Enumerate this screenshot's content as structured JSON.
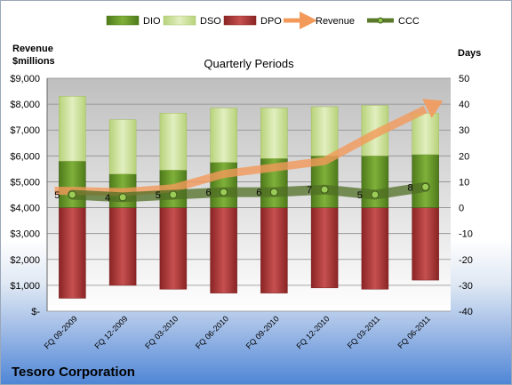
{
  "chart_data": {
    "type": "bar",
    "title": "Quarterly Periods",
    "company": "Tesoro Corporation",
    "left_axis_title": [
      "Revenue",
      "$millions"
    ],
    "right_axis_title": "Days",
    "left_ylim": [
      0,
      9000
    ],
    "right_ylim": [
      -40,
      50
    ],
    "left_ticks": [
      "$-",
      "$1,000",
      "$2,000",
      "$3,000",
      "$4,000",
      "$5,000",
      "$6,000",
      "$7,000",
      "$8,000",
      "$9,000"
    ],
    "right_ticks": [
      "-40",
      "-30",
      "-20",
      "-10",
      "0",
      "10",
      "20",
      "30",
      "40",
      "50"
    ],
    "categories": [
      "FQ 09-2009",
      "FQ 12-2009",
      "FQ 03-2010",
      "FQ 06-2010",
      "FQ 09-2010",
      "FQ 12-2010",
      "FQ 03-2011",
      "FQ 06-2011"
    ],
    "legend": [
      "DIO",
      "DSO",
      "DPO",
      "Revenue",
      "CCC"
    ],
    "series": [
      {
        "name": "DIO",
        "axis": "days",
        "color": "#6a9a2a",
        "values": [
          18,
          13,
          14.5,
          17.5,
          19,
          20,
          20,
          20.5
        ]
      },
      {
        "name": "DSO",
        "axis": "days",
        "color": "#cfe3a0",
        "values": [
          25,
          21,
          22,
          21,
          19.5,
          19,
          19.5,
          16
        ]
      },
      {
        "name": "DPO",
        "axis": "days",
        "color": "#b03a3a",
        "values": [
          -35,
          -30,
          -31.5,
          -33,
          -33,
          -31,
          -31.5,
          -28
        ]
      },
      {
        "name": "Revenue",
        "axis": "revenue",
        "color": "#f0a060",
        "values": [
          4650,
          4600,
          4750,
          5300,
          5550,
          5800,
          6850,
          7800
        ]
      },
      {
        "name": "CCC",
        "axis": "days",
        "color": "#5a7a2a",
        "values": [
          5,
          4,
          5,
          6,
          6,
          7,
          5,
          8
        ]
      }
    ],
    "ccc_labels": [
      "5",
      "4",
      "5",
      "6",
      "6",
      "7",
      "5",
      "8"
    ],
    "grid": true,
    "legend_position": "top"
  }
}
